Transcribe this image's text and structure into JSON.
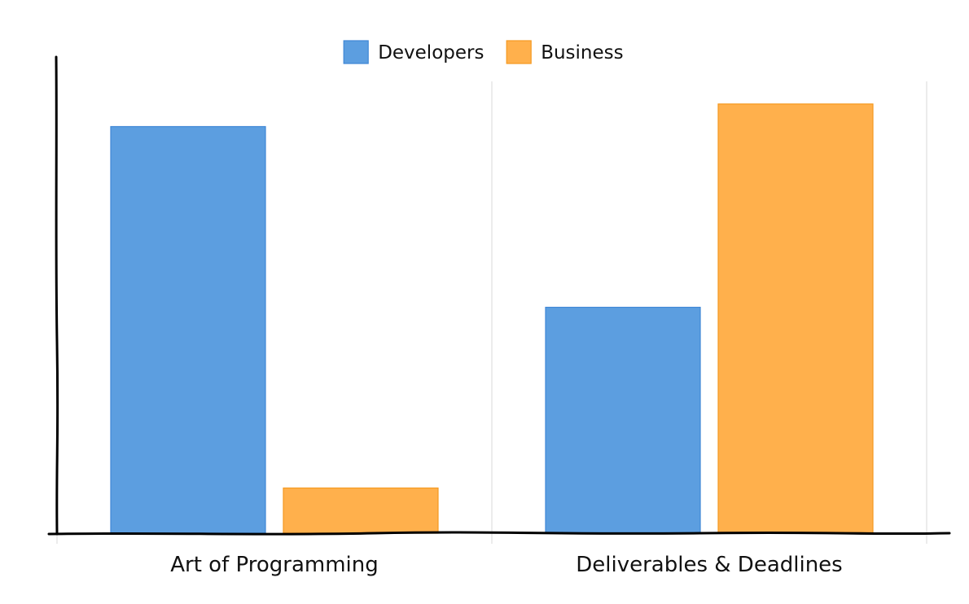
{
  "chart_data": {
    "type": "bar",
    "title": "",
    "xlabel": "",
    "ylabel": "",
    "categories": [
      "Art of Programming",
      "Deliverables & Deadlines"
    ],
    "series": [
      {
        "name": "Developers",
        "color": "#5c9ee0",
        "stroke": "#3f87d6",
        "values": [
          90,
          50
        ]
      },
      {
        "name": "Business",
        "color": "#ffb04c",
        "stroke": "#f59a22",
        "values": [
          10,
          95
        ]
      }
    ],
    "ylim": [
      0,
      100
    ],
    "y_axis_labels": false,
    "vertical_grid": true,
    "legend": "top-center",
    "style": "hand-drawn"
  }
}
